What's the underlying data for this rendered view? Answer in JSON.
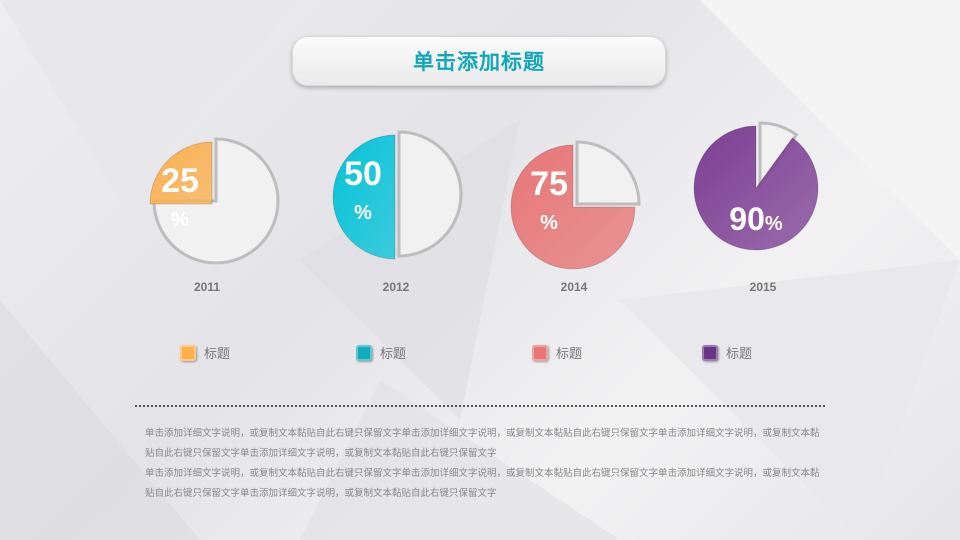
{
  "title": "单击添加标题",
  "chart_data": {
    "type": "pie",
    "items": [
      {
        "year": "2011",
        "value": 25,
        "label_num": "25",
        "label_pct": "%",
        "color": "#fbb04e"
      },
      {
        "year": "2012",
        "value": 50,
        "label_num": "50",
        "label_pct": "%",
        "color": "#04c3d8"
      },
      {
        "year": "2014",
        "value": 75,
        "label_num": "75",
        "label_pct": "%",
        "color": "#e87676"
      },
      {
        "year": "2015",
        "value": 90,
        "label_num": "90",
        "label_pct": "%",
        "color": "#7d3f94"
      }
    ]
  },
  "legend": [
    {
      "label": "标题",
      "color": "#fbb04e"
    },
    {
      "label": "标题",
      "color": "#13aab9"
    },
    {
      "label": "标题",
      "color": "#e87676"
    },
    {
      "label": "标题",
      "color": "#6a3585"
    }
  ],
  "description": [
    "单击添加详细文字说明，或复制文本黏贴自此右键只保留文字单击添加详细文字说明，或复制文本黏贴自此右键只保留文字单击添加详细文字说明，或复制文本黏贴自此右键只保留文字单击添加详细文字说明，或复制文本黏贴自此右键只保留文字",
    "单击添加详细文字说明，或复制文本黏贴自此右键只保留文字单击添加详细文字说明，或复制文本黏贴自此右键只保留文字单击添加详细文字说明，或复制文本黏贴自此右键只保留文字单击添加详细文字说明，或复制文本黏贴自此右键只保留文字"
  ]
}
